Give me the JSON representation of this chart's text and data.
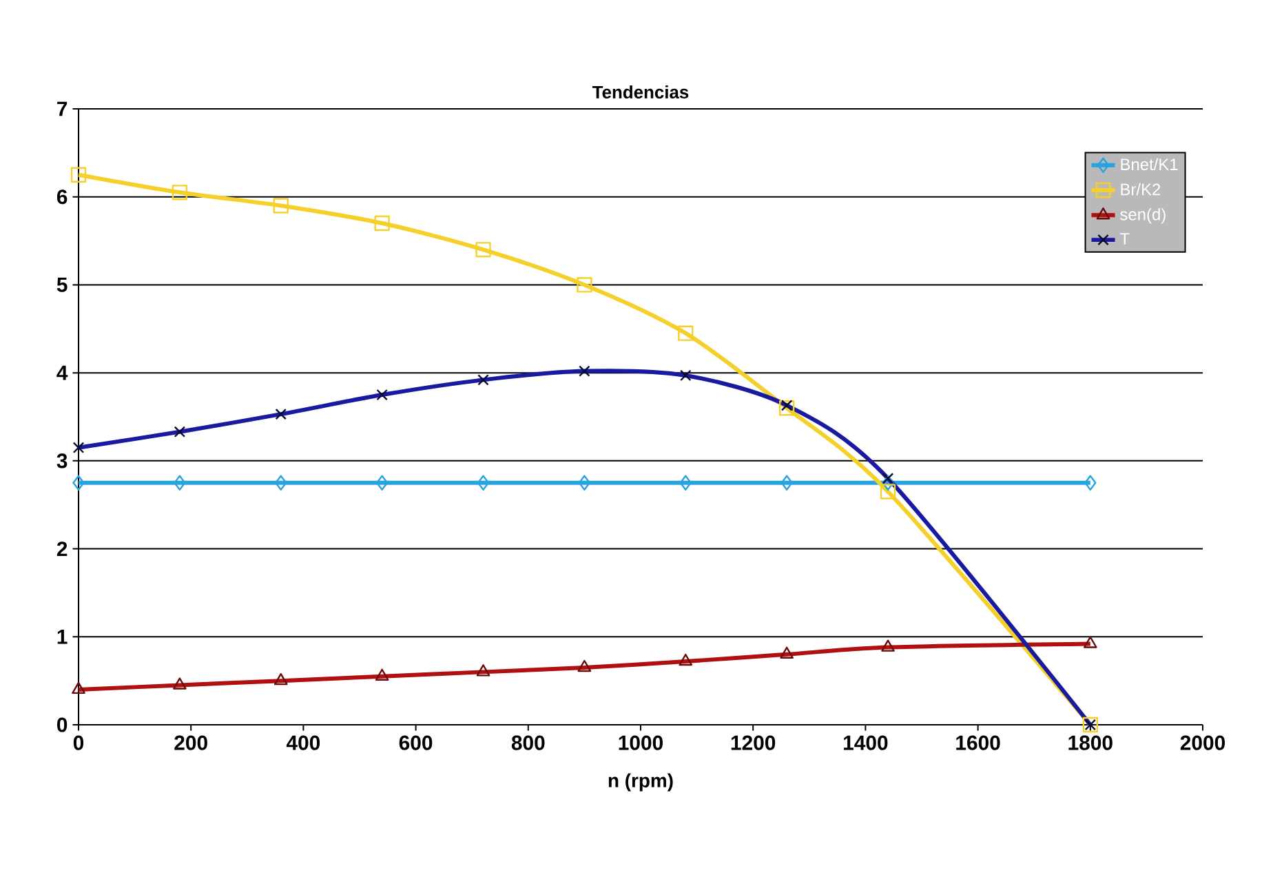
{
  "chart_data": {
    "type": "line",
    "title": "Tendencias",
    "xlabel": "n (rpm)",
    "x": [
      0,
      180,
      360,
      540,
      720,
      900,
      1080,
      1260,
      1440,
      1800
    ],
    "xlim": [
      0,
      2000
    ],
    "xticks": [
      0,
      200,
      400,
      600,
      800,
      1000,
      1200,
      1400,
      1600,
      1800,
      2000
    ],
    "ylim": [
      0,
      7
    ],
    "yticks": [
      0,
      1,
      2,
      3,
      4,
      5,
      6,
      7
    ],
    "grid": "y",
    "legend": "top right",
    "series": [
      {
        "name": "Bnet/K1",
        "color": "#29a3e0",
        "marker": "diamond",
        "values": [
          2.75,
          2.75,
          2.75,
          2.75,
          2.75,
          2.75,
          2.75,
          2.75,
          2.75,
          2.75
        ]
      },
      {
        "name": "Br/K2",
        "color": "#f5d02a",
        "marker": "square",
        "values": [
          6.25,
          6.05,
          5.9,
          5.7,
          5.4,
          5.0,
          4.45,
          3.6,
          2.65,
          0
        ]
      },
      {
        "name": "sen(d)",
        "color": "#b01010",
        "marker": "triangle",
        "values": [
          0.4,
          0.45,
          0.5,
          0.55,
          0.6,
          0.65,
          0.72,
          0.8,
          0.88,
          0.92
        ]
      },
      {
        "name": "T",
        "color": "#1a1aa0",
        "marker": "cross",
        "values": [
          3.15,
          3.33,
          3.53,
          3.75,
          3.92,
          4.02,
          3.97,
          3.63,
          2.8,
          0
        ]
      }
    ]
  }
}
